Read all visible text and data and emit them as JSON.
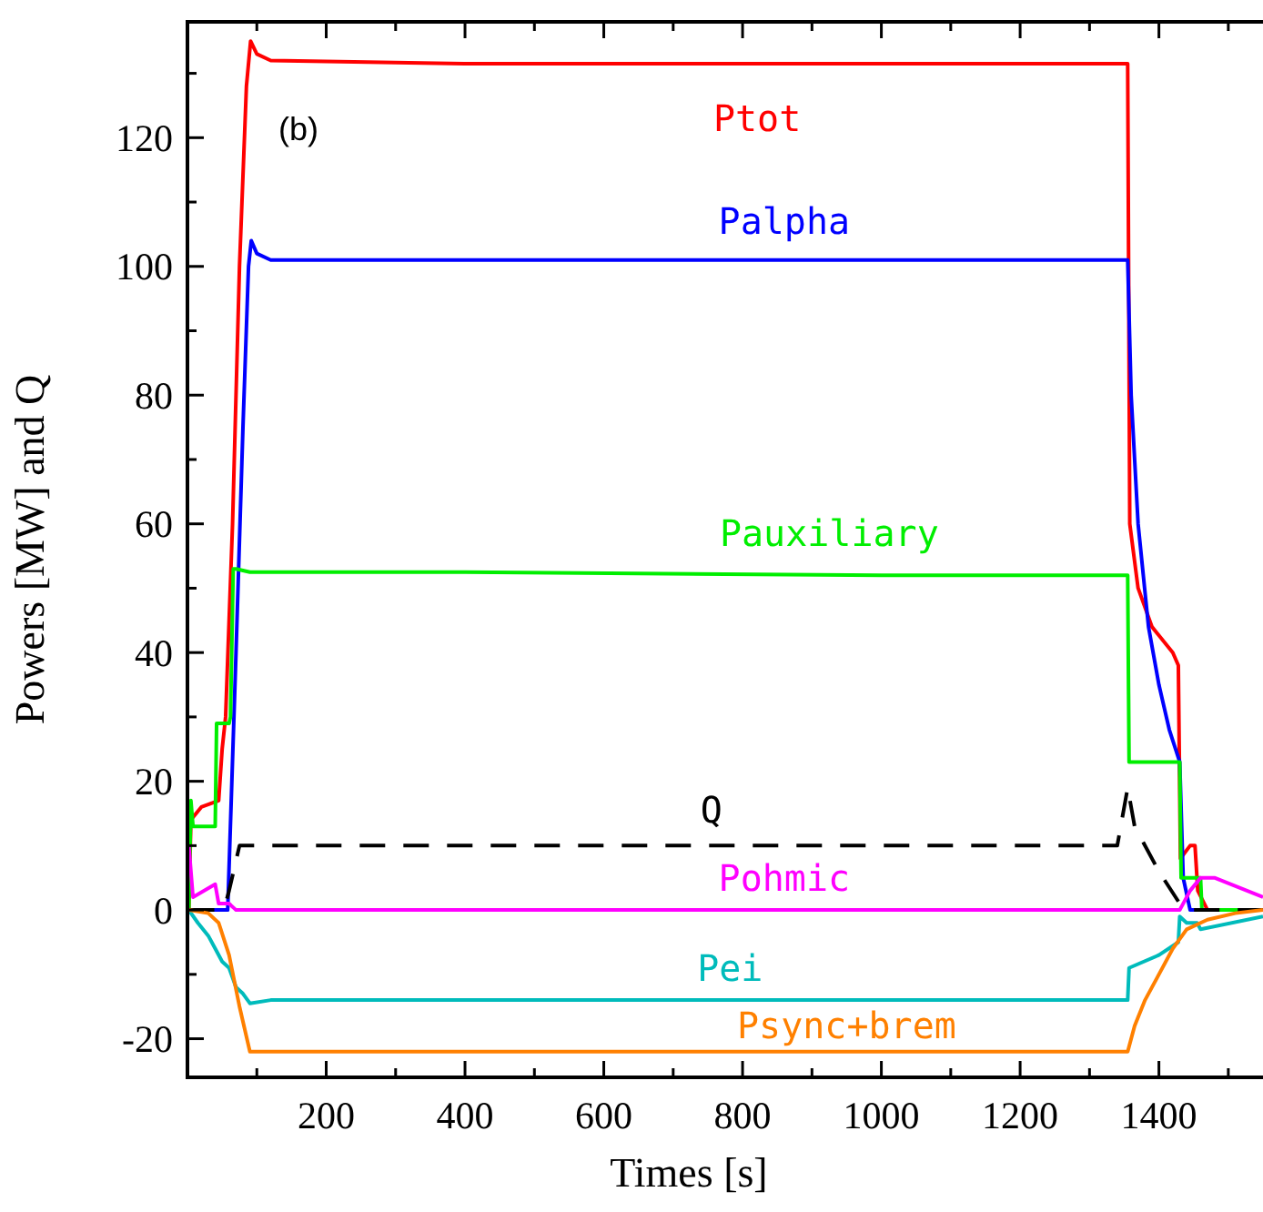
{
  "chart_data": {
    "type": "line",
    "xlabel": "Times [s]",
    "ylabel": "Powers [MW] and Q",
    "annotations": [
      "(b)"
    ],
    "xlim": [
      0,
      1550
    ],
    "ylim": [
      -26,
      138
    ],
    "xticks": [
      {
        "value": 100,
        "label": null
      },
      200,
      {
        "value": 300,
        "label": null
      },
      400,
      {
        "value": 500,
        "label": null
      },
      600,
      {
        "value": 700,
        "label": null
      },
      800,
      {
        "value": 900,
        "label": null
      },
      1000,
      {
        "value": 1100,
        "label": null
      },
      1200,
      {
        "value": 1300,
        "label": null
      },
      1400,
      {
        "value": 1500,
        "label": null
      }
    ],
    "yticks": [
      -20,
      {
        "value": -10,
        "label": null
      },
      0,
      {
        "value": 10,
        "label": null
      },
      20,
      {
        "value": 30,
        "label": null
      },
      40,
      {
        "value": 50,
        "label": null
      },
      60,
      {
        "value": 70,
        "label": null
      },
      80,
      {
        "value": 90,
        "label": null
      },
      100,
      {
        "value": 110,
        "label": null
      },
      120,
      {
        "value": 130,
        "label": null
      }
    ],
    "grid": false,
    "marker": "none",
    "series": [
      {
        "name": "Ptot",
        "color": "#ff0000",
        "x": [
          2,
          5,
          20,
          45,
          50,
          55,
          65,
          75,
          85,
          91,
          100,
          120,
          400,
          1000,
          1355,
          1358,
          1370,
          1390,
          1420,
          1428,
          1431,
          1445,
          1452,
          1456,
          1470,
          1550
        ],
        "values": [
          0,
          14,
          16,
          17,
          25,
          30,
          60,
          100,
          128,
          135,
          133,
          132,
          131.5,
          131.5,
          131.5,
          60,
          50,
          44,
          40,
          38,
          8,
          10,
          10,
          3,
          0,
          0
        ]
      },
      {
        "name": "Palpha",
        "color": "#0000ff",
        "x": [
          2,
          40,
          58,
          70,
          80,
          88,
          92,
          100,
          120,
          400,
          1000,
          1355,
          1360,
          1370,
          1385,
          1400,
          1415,
          1430,
          1435,
          1445,
          1550
        ],
        "values": [
          0,
          0,
          0,
          40,
          75,
          100,
          104,
          102,
          101,
          101,
          101,
          101,
          80,
          60,
          44,
          35,
          28,
          23,
          5,
          0,
          0
        ]
      },
      {
        "name": "Pauxiliary",
        "color": "#00ee00",
        "x": [
          2,
          5,
          8,
          40,
          42,
          60,
          62,
          66,
          70,
          90,
          400,
          1000,
          1355,
          1357,
          1430,
          1432,
          1460,
          1462,
          1550
        ],
        "values": [
          0,
          17,
          13,
          13,
          29,
          29,
          30,
          53,
          53,
          52.5,
          52.5,
          52,
          52,
          23,
          23,
          5,
          5,
          0,
          0
        ]
      },
      {
        "name": "Q",
        "color": "#000000",
        "line_style": "dashed",
        "x": [
          2,
          40,
          55,
          60,
          75,
          1340,
          1355,
          1365,
          1400,
          1430,
          1450,
          1550
        ],
        "values": [
          0,
          0,
          1,
          3,
          10,
          10,
          19,
          13,
          6,
          1,
          0,
          0
        ]
      },
      {
        "name": "Pohmic",
        "color": "#ff00ff",
        "x": [
          2,
          8,
          40,
          45,
          60,
          70,
          400,
          1000,
          1430,
          1445,
          1460,
          1480,
          1550
        ],
        "values": [
          10,
          2,
          4,
          1,
          1,
          0,
          0,
          0,
          0,
          3,
          5,
          5,
          2
        ]
      },
      {
        "name": "Pei",
        "color": "#00bbbb",
        "x": [
          2,
          15,
          30,
          40,
          50,
          60,
          70,
          80,
          90,
          120,
          400,
          1000,
          1355,
          1357,
          1400,
          1428,
          1430,
          1440,
          1455,
          1460,
          1550
        ],
        "values": [
          0,
          -2,
          -4,
          -6,
          -8,
          -9,
          -12,
          -13,
          -14.5,
          -14,
          -14,
          -14,
          -14,
          -9,
          -7,
          -5,
          -1,
          -2,
          -2,
          -3,
          -1
        ]
      },
      {
        "name": "Psync+brem",
        "color": "#ff8000",
        "x": [
          2,
          30,
          45,
          60,
          75,
          90,
          120,
          400,
          1000,
          1355,
          1365,
          1380,
          1400,
          1420,
          1440,
          1470,
          1510,
          1550
        ],
        "values": [
          0,
          -0.5,
          -2,
          -7,
          -15,
          -22,
          -22,
          -22,
          -22,
          -22,
          -18,
          -14,
          -10,
          -6,
          -3,
          -1.5,
          -0.5,
          0
        ]
      }
    ]
  }
}
